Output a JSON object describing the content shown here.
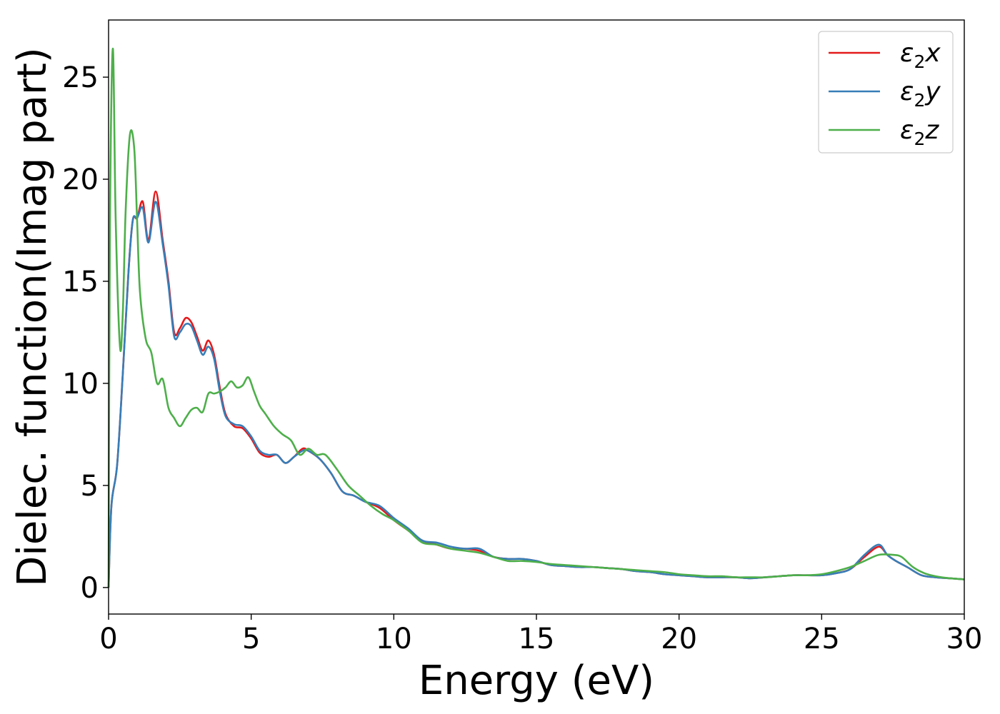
{
  "chart_data": {
    "type": "line",
    "xlabel": "Energy (eV)",
    "ylabel": "Dielec. function(Imag part)",
    "xlim": [
      0,
      30
    ],
    "ylim": [
      -1.3,
      27.8
    ],
    "xticks": [
      0,
      5,
      10,
      15,
      20,
      25,
      30
    ],
    "yticks": [
      0,
      5,
      10,
      15,
      20,
      25
    ],
    "xtick_labels": [
      "0",
      "5",
      "10",
      "15",
      "20",
      "25",
      "30"
    ],
    "ytick_labels": [
      "0",
      "5",
      "10",
      "15",
      "20",
      "25"
    ],
    "grid": false,
    "legend": {
      "placement": "top-right",
      "entries": [
        "ε2x",
        "ε2y",
        "ε2z"
      ]
    },
    "series": [
      {
        "name": "ε2x",
        "color": "#e41a1c",
        "x": [
          0,
          0.1,
          0.3,
          0.5,
          0.7,
          0.85,
          1.0,
          1.2,
          1.4,
          1.65,
          1.9,
          2.1,
          2.3,
          2.5,
          2.7,
          2.9,
          3.1,
          3.3,
          3.5,
          3.7,
          3.9,
          4.1,
          4.4,
          4.7,
          5.0,
          5.3,
          5.6,
          5.9,
          6.2,
          6.5,
          6.8,
          7.0,
          7.4,
          7.8,
          8.2,
          8.6,
          9.0,
          9.5,
          10.0,
          10.5,
          11.0,
          11.5,
          12.0,
          12.5,
          13.0,
          13.5,
          14.0,
          14.5,
          15.0,
          15.5,
          16.0,
          16.5,
          17.0,
          17.5,
          18.0,
          18.5,
          19.0,
          19.5,
          20.0,
          20.5,
          21.0,
          21.5,
          22.0,
          22.5,
          23.0,
          23.5,
          24.0,
          24.5,
          25.0,
          25.5,
          26.0,
          26.5,
          27.0,
          27.3,
          27.6,
          28.0,
          28.5,
          29.0,
          29.5,
          30.0
        ],
        "values": [
          0,
          4.0,
          6.0,
          10.5,
          15.5,
          18.0,
          18.1,
          18.9,
          17.0,
          19.4,
          17.0,
          15.0,
          12.5,
          12.7,
          13.2,
          13.0,
          12.3,
          11.6,
          12.1,
          11.4,
          9.8,
          8.5,
          7.9,
          7.8,
          7.3,
          6.6,
          6.4,
          6.5,
          6.1,
          6.4,
          6.8,
          6.7,
          6.3,
          5.6,
          4.7,
          4.5,
          4.2,
          3.9,
          3.3,
          2.8,
          2.3,
          2.1,
          1.9,
          1.9,
          1.8,
          1.5,
          1.4,
          1.4,
          1.3,
          1.1,
          1.05,
          1.0,
          1.0,
          0.95,
          0.9,
          0.8,
          0.75,
          0.65,
          0.6,
          0.55,
          0.5,
          0.5,
          0.5,
          0.45,
          0.5,
          0.55,
          0.6,
          0.6,
          0.6,
          0.7,
          0.9,
          1.5,
          2.0,
          1.6,
          1.3,
          1.0,
          0.6,
          0.5,
          0.45,
          0.4
        ]
      },
      {
        "name": "ε2y",
        "color": "#377eb8",
        "x": [
          0,
          0.1,
          0.3,
          0.5,
          0.7,
          0.85,
          1.0,
          1.2,
          1.4,
          1.65,
          1.9,
          2.1,
          2.3,
          2.5,
          2.7,
          2.9,
          3.1,
          3.3,
          3.5,
          3.7,
          3.9,
          4.1,
          4.4,
          4.7,
          5.0,
          5.3,
          5.6,
          5.9,
          6.2,
          6.5,
          6.8,
          7.0,
          7.4,
          7.8,
          8.2,
          8.6,
          9.0,
          9.5,
          10.0,
          10.5,
          11.0,
          11.5,
          12.0,
          12.5,
          13.0,
          13.5,
          14.0,
          14.5,
          15.0,
          15.5,
          16.0,
          16.5,
          17.0,
          17.5,
          18.0,
          18.5,
          19.0,
          19.5,
          20.0,
          20.5,
          21.0,
          21.5,
          22.0,
          22.5,
          23.0,
          23.5,
          24.0,
          24.5,
          25.0,
          25.5,
          26.0,
          26.5,
          27.0,
          27.3,
          27.6,
          28.0,
          28.5,
          29.0,
          29.5,
          30.0
        ],
        "values": [
          0,
          4.0,
          6.0,
          10.5,
          15.5,
          18.0,
          18.1,
          18.6,
          16.9,
          18.9,
          16.8,
          14.8,
          12.3,
          12.5,
          12.9,
          12.8,
          12.1,
          11.4,
          11.8,
          11.2,
          9.6,
          8.4,
          8.0,
          7.9,
          7.4,
          6.7,
          6.5,
          6.5,
          6.1,
          6.4,
          6.7,
          6.7,
          6.3,
          5.6,
          4.7,
          4.5,
          4.2,
          4.0,
          3.4,
          2.9,
          2.3,
          2.2,
          2.0,
          1.9,
          1.9,
          1.5,
          1.4,
          1.4,
          1.3,
          1.1,
          1.05,
          1.0,
          1.0,
          0.95,
          0.9,
          0.8,
          0.75,
          0.65,
          0.6,
          0.55,
          0.5,
          0.5,
          0.5,
          0.45,
          0.5,
          0.55,
          0.6,
          0.6,
          0.6,
          0.7,
          0.9,
          1.6,
          2.1,
          1.6,
          1.3,
          1.0,
          0.6,
          0.5,
          0.45,
          0.4
        ]
      },
      {
        "name": "ε2z",
        "color": "#4daf4a",
        "x": [
          0,
          0.05,
          0.15,
          0.25,
          0.4,
          0.5,
          0.6,
          0.75,
          0.9,
          1.0,
          1.1,
          1.3,
          1.5,
          1.7,
          1.9,
          2.1,
          2.3,
          2.5,
          2.7,
          2.9,
          3.1,
          3.3,
          3.5,
          3.7,
          3.9,
          4.1,
          4.3,
          4.5,
          4.7,
          4.9,
          5.1,
          5.3,
          5.5,
          5.8,
          6.1,
          6.4,
          6.7,
          7.0,
          7.3,
          7.6,
          8.0,
          8.4,
          8.8,
          9.2,
          9.6,
          10.0,
          10.5,
          11.0,
          11.5,
          12.0,
          12.5,
          13.0,
          13.5,
          14.0,
          14.5,
          15.0,
          15.5,
          16.0,
          16.5,
          17.0,
          17.5,
          18.0,
          18.5,
          19.0,
          19.5,
          20.0,
          20.5,
          21.0,
          21.5,
          22.0,
          22.5,
          23.0,
          23.5,
          24.0,
          24.5,
          25.0,
          25.5,
          26.0,
          26.5,
          27.0,
          27.5,
          27.8,
          28.2,
          28.6,
          29.0,
          29.5,
          30.0
        ],
        "values": [
          0,
          18.0,
          26.4,
          18.0,
          11.8,
          13.5,
          18.5,
          22.2,
          21.5,
          18.0,
          14.5,
          12.2,
          11.5,
          10.0,
          10.2,
          8.8,
          8.3,
          7.9,
          8.3,
          8.7,
          8.8,
          8.6,
          9.5,
          9.5,
          9.6,
          9.8,
          10.1,
          9.8,
          9.9,
          10.3,
          9.6,
          8.9,
          8.5,
          7.9,
          7.5,
          7.2,
          6.5,
          6.8,
          6.5,
          6.5,
          5.8,
          5.0,
          4.5,
          4.0,
          3.6,
          3.3,
          2.8,
          2.2,
          2.1,
          1.9,
          1.8,
          1.7,
          1.5,
          1.3,
          1.3,
          1.25,
          1.15,
          1.1,
          1.05,
          1.0,
          0.95,
          0.9,
          0.85,
          0.8,
          0.75,
          0.65,
          0.6,
          0.55,
          0.55,
          0.5,
          0.5,
          0.5,
          0.55,
          0.6,
          0.6,
          0.65,
          0.8,
          1.0,
          1.3,
          1.6,
          1.6,
          1.5,
          1.0,
          0.7,
          0.55,
          0.45,
          0.4
        ]
      }
    ]
  }
}
